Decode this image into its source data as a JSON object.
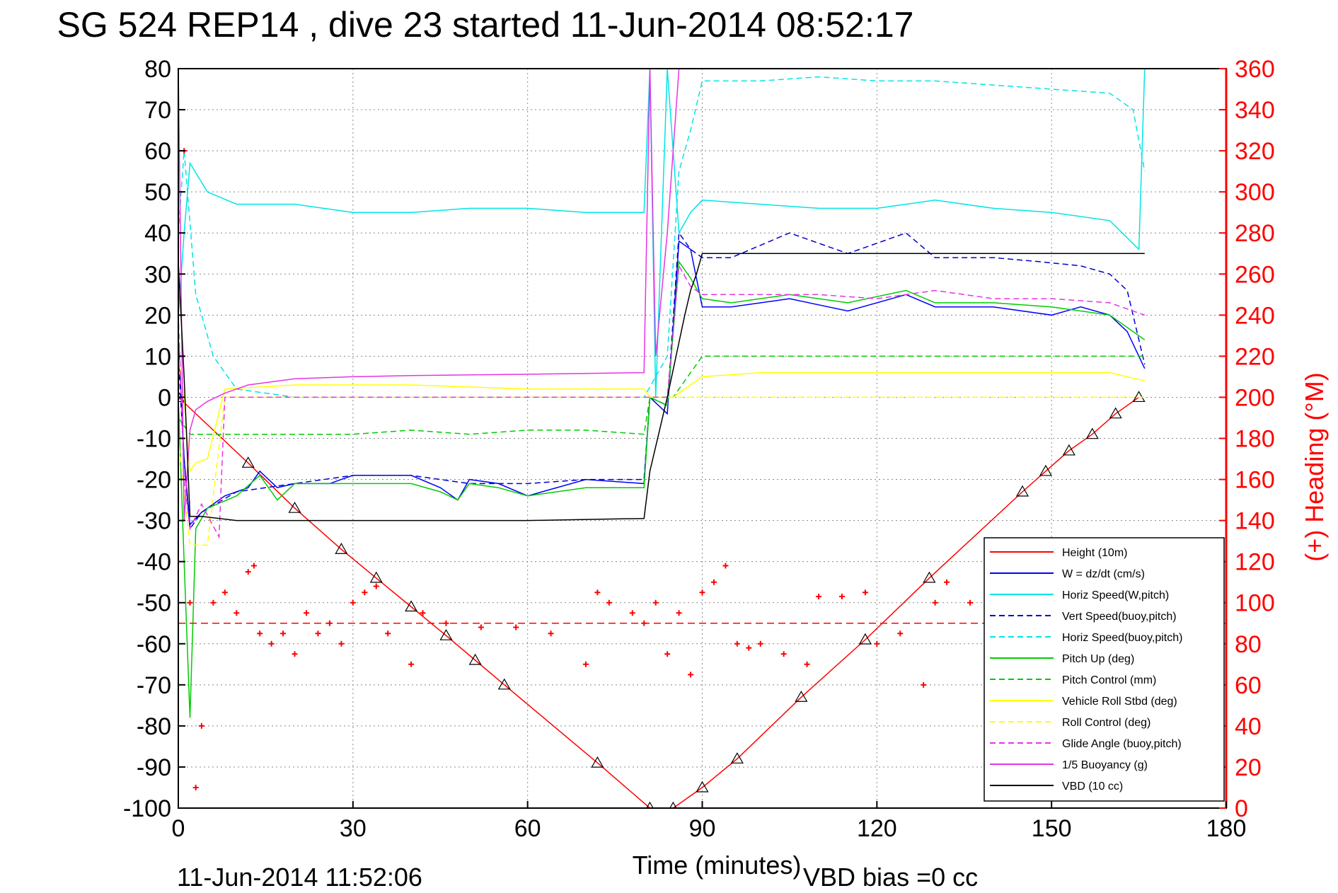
{
  "chart_data": {
    "type": "line",
    "title": "SG 524   REP14  , dive 23 started 11-Jun-2014 08:52:17",
    "xlabel": "Time (minutes)",
    "ylabel_right": "(+) Heading (°M)",
    "xlim": [
      0,
      180
    ],
    "ylim": [
      -100,
      80
    ],
    "ylim_right": [
      0,
      360
    ],
    "x_ticks": [
      0,
      30,
      60,
      90,
      120,
      150,
      180
    ],
    "y_ticks": [
      80,
      70,
      60,
      50,
      40,
      30,
      20,
      10,
      0,
      -10,
      -20,
      -30,
      -40,
      -50,
      -60,
      -70,
      -80,
      -90,
      -100
    ],
    "y_ticks_right": [
      360,
      340,
      320,
      300,
      280,
      260,
      240,
      220,
      200,
      180,
      160,
      140,
      120,
      100,
      80,
      60,
      40,
      20,
      0
    ],
    "grid": true,
    "legend_position": "lower-right",
    "footer_left": "11-Jun-2014 11:52:06",
    "footer_right": "VBD bias =0 cc",
    "series": [
      {
        "name": "Height (10m)",
        "color": "#ff0000",
        "dash": "solid",
        "x": [
          0,
          12,
          20,
          28,
          34,
          40,
          46,
          51,
          56,
          72,
          81,
          85,
          90,
          96,
          107,
          118,
          129,
          145,
          149,
          153,
          157,
          161,
          165
        ],
        "y": [
          0,
          -16,
          -27,
          -37,
          -44,
          -51,
          -58,
          -64,
          -70,
          -89,
          -100,
          -100,
          -95,
          -88,
          -73,
          -59,
          -44,
          -23,
          -18,
          -13,
          -9,
          -4,
          0
        ]
      },
      {
        "name": "W = dz/dt (cm/s)",
        "color": "#0000ff",
        "dash": "solid",
        "x": [
          0,
          1,
          2,
          4,
          8,
          12,
          14,
          17,
          20,
          26,
          30,
          40,
          45,
          48,
          50,
          55,
          60,
          70,
          80,
          81,
          84,
          86,
          88,
          90,
          95,
          105,
          115,
          125,
          130,
          140,
          150,
          155,
          160,
          163,
          166
        ],
        "y": [
          15,
          -15,
          -31,
          -28,
          -24,
          -22,
          -18,
          -22,
          -21,
          -21,
          -19,
          -19,
          -22,
          -25,
          -20,
          -21,
          -24,
          -20,
          -21,
          0,
          -4,
          38,
          36,
          22,
          22,
          24,
          21,
          25,
          22,
          22,
          20,
          22,
          20,
          16,
          7
        ]
      },
      {
        "name": "Horiz Speed(W,pitch)",
        "color": "#00e5e5",
        "dash": "solid",
        "x": [
          0,
          1,
          2,
          5,
          10,
          20,
          30,
          40,
          50,
          60,
          70,
          80,
          81,
          82,
          84,
          86,
          88,
          90,
          100,
          110,
          120,
          130,
          140,
          150,
          160,
          165,
          166
        ],
        "y": [
          20,
          40,
          57,
          50,
          47,
          47,
          45,
          45,
          46,
          46,
          45,
          45,
          80,
          0,
          80,
          40,
          45,
          48,
          47,
          46,
          46,
          48,
          46,
          45,
          43,
          36,
          80
        ]
      },
      {
        "name": "Vert Speed(buoy,pitch)",
        "color": "#0000cc",
        "dash": "dashed",
        "x": [
          0,
          1,
          2,
          4,
          10,
          20,
          30,
          40,
          50,
          60,
          70,
          80,
          81,
          84,
          86,
          88,
          90,
          95,
          105,
          115,
          125,
          130,
          140,
          148,
          155,
          160,
          163,
          166
        ],
        "y": [
          10,
          -15,
          -32,
          -28,
          -23,
          -21,
          -19,
          -19,
          -21,
          -21,
          -20,
          -20,
          0,
          -2,
          40,
          36,
          34,
          34,
          40,
          35,
          40,
          34,
          34,
          33,
          32,
          30,
          26,
          8
        ]
      },
      {
        "name": "Horiz Speed(buoy,pitch)",
        "color": "#00e5e5",
        "dash": "dashed",
        "x": [
          0,
          1,
          3,
          6,
          10,
          20,
          30,
          40,
          50,
          60,
          70,
          80,
          84,
          86,
          88,
          90,
          100,
          110,
          120,
          130,
          140,
          150,
          160,
          164,
          166
        ],
        "y": [
          40,
          60,
          25,
          10,
          2,
          0,
          0,
          0,
          0,
          0,
          0,
          0,
          10,
          55,
          65,
          77,
          77,
          78,
          77,
          77,
          76,
          75,
          74,
          70,
          55
        ]
      },
      {
        "name": "Pitch Up (deg)",
        "color": "#00cc00",
        "dash": "solid",
        "x": [
          0,
          1,
          2,
          3,
          5,
          10,
          14,
          17,
          20,
          30,
          40,
          45,
          48,
          50,
          55,
          60,
          70,
          80,
          81,
          84,
          86,
          88,
          90,
          95,
          105,
          115,
          125,
          130,
          140,
          150,
          160,
          166
        ],
        "y": [
          0,
          -40,
          -78,
          -32,
          -27,
          -24,
          -19,
          -25,
          -21,
          -21,
          -21,
          -23,
          -25,
          -21,
          -22,
          -24,
          -22,
          -22,
          0,
          -2,
          33,
          29,
          24,
          23,
          25,
          23,
          26,
          23,
          23,
          22,
          20,
          14
        ]
      },
      {
        "name": "Pitch Control (mm)",
        "color": "#00cc00",
        "dash": "dashed",
        "x": [
          0,
          2,
          5,
          10,
          20,
          30,
          40,
          50,
          60,
          70,
          80,
          81,
          85,
          90,
          100,
          110,
          120,
          130,
          140,
          150,
          160,
          166
        ],
        "y": [
          -5,
          -9,
          -9,
          -9,
          -9,
          -9,
          -8,
          -9,
          -8,
          -8,
          -9,
          0,
          0,
          10,
          10,
          10,
          10,
          10,
          10,
          10,
          10,
          10
        ]
      },
      {
        "name": "Vehicle Roll Stbd (deg)",
        "color": "#ffff00",
        "dash": "solid",
        "x": [
          0,
          1,
          2,
          3,
          5,
          8,
          20,
          40,
          60,
          80,
          81,
          85,
          90,
          100,
          120,
          140,
          160,
          166
        ],
        "y": [
          10,
          0,
          -18,
          -16,
          -15,
          2,
          3,
          3,
          2,
          2,
          0,
          0,
          5,
          6,
          6,
          6,
          6,
          4
        ]
      },
      {
        "name": "Roll Control (deg)",
        "color": "#ffff00",
        "dash": "dashed",
        "x": [
          0,
          2,
          5,
          8,
          20,
          40,
          60,
          80,
          81,
          85,
          90,
          100,
          120,
          140,
          160,
          166
        ],
        "y": [
          -10,
          -36,
          -36,
          0,
          0,
          0,
          0,
          0,
          0,
          0,
          0,
          0,
          0,
          0,
          0,
          0
        ]
      },
      {
        "name": "Glide Angle (buoy,pitch)",
        "color": "#e633e6",
        "dash": "dashed",
        "x": [
          0,
          1,
          2,
          4,
          7,
          8,
          20,
          40,
          60,
          80,
          81,
          84,
          86,
          88,
          90,
          100,
          110,
          120,
          130,
          140,
          150,
          160,
          166
        ],
        "y": [
          20,
          -20,
          -32,
          -26,
          -34,
          0,
          0,
          0,
          0,
          0,
          0,
          0,
          32,
          27,
          25,
          25,
          25,
          24,
          26,
          24,
          24,
          23,
          20
        ]
      },
      {
        "name": "1/5 Buoyancy (g)",
        "color": "#e633e6",
        "dash": "solid",
        "x": [
          0,
          1,
          2,
          3,
          5,
          8,
          12,
          20,
          30,
          40,
          60,
          80,
          81,
          82,
          84,
          86
        ],
        "y": [
          80,
          -30,
          -8,
          -3,
          -1,
          1,
          3,
          4.5,
          5,
          5.3,
          5.6,
          6,
          80,
          10,
          40,
          80
        ]
      },
      {
        "name": "VBD (10 cc)",
        "color": "#000000",
        "dash": "solid",
        "x": [
          0,
          1,
          2,
          4,
          10,
          30,
          60,
          80,
          81,
          84,
          87,
          88,
          89,
          90,
          120,
          150,
          166
        ],
        "y": [
          33,
          5,
          -29,
          -29,
          -30,
          -30,
          -30,
          -29.5,
          -18,
          0,
          20,
          26,
          30,
          35,
          35,
          35,
          35
        ]
      },
      {
        "name": "(+) Heading",
        "color": "#ff0000",
        "dash": "markers",
        "axis": "right",
        "x": [
          0,
          1,
          2,
          3,
          4,
          6,
          8,
          10,
          12,
          13,
          14,
          16,
          18,
          20,
          22,
          24,
          26,
          28,
          30,
          32,
          34,
          36,
          40,
          42,
          46,
          52,
          58,
          64,
          70,
          72,
          74,
          78,
          80,
          82,
          84,
          86,
          88,
          90,
          92,
          94,
          96,
          98,
          100,
          104,
          108,
          110,
          114,
          118,
          120,
          124,
          128,
          130,
          132,
          136,
          140
        ],
        "y": [
          340,
          320,
          100,
          10,
          40,
          100,
          105,
          95,
          115,
          118,
          85,
          80,
          85,
          75,
          95,
          85,
          90,
          80,
          100,
          105,
          108,
          85,
          70,
          95,
          90,
          88,
          88,
          85,
          70,
          105,
          100,
          95,
          90,
          100,
          75,
          95,
          65,
          105,
          110,
          118,
          80,
          78,
          80,
          75,
          70,
          103,
          103,
          105,
          80,
          85,
          60,
          100,
          110,
          100,
          90
        ]
      }
    ]
  }
}
